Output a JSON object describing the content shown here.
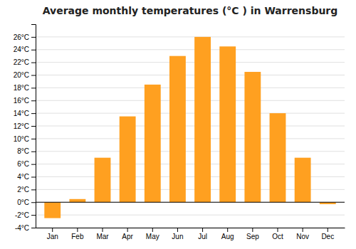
{
  "chart_data": {
    "type": "bar",
    "title": "Average monthly temperatures (°C ) in Warrensburg",
    "categories": [
      "Jan",
      "Feb",
      "Mar",
      "Apr",
      "May",
      "Jun",
      "Jul",
      "Aug",
      "Sep",
      "Oct",
      "Nov",
      "Dec"
    ],
    "values": [
      -2.5,
      0.5,
      7.0,
      13.5,
      18.5,
      23.0,
      26.0,
      24.5,
      20.5,
      14.0,
      7.0,
      -0.3
    ],
    "color": "#FFA020",
    "ylim": [
      -4,
      28
    ],
    "yticks": [
      {
        "value": -4,
        "label": "-4°C"
      },
      {
        "value": -2,
        "label": "-2°C"
      },
      {
        "value": 0,
        "label": "0°C"
      },
      {
        "value": 2,
        "label": "2°C"
      },
      {
        "value": 4,
        "label": "4°C"
      },
      {
        "value": 6,
        "label": "6°C"
      },
      {
        "value": 8,
        "label": "8°C"
      },
      {
        "value": 10,
        "label": "10°C"
      },
      {
        "value": 12,
        "label": "12°C"
      },
      {
        "value": 14,
        "label": "14°C"
      },
      {
        "value": 16,
        "label": "16°C"
      },
      {
        "value": 18,
        "label": "18°C"
      },
      {
        "value": 20,
        "label": "20°C"
      },
      {
        "value": 22,
        "label": "22°C"
      },
      {
        "value": 24,
        "label": "24°C"
      },
      {
        "value": 26,
        "label": "26°C"
      }
    ],
    "grid": true
  }
}
